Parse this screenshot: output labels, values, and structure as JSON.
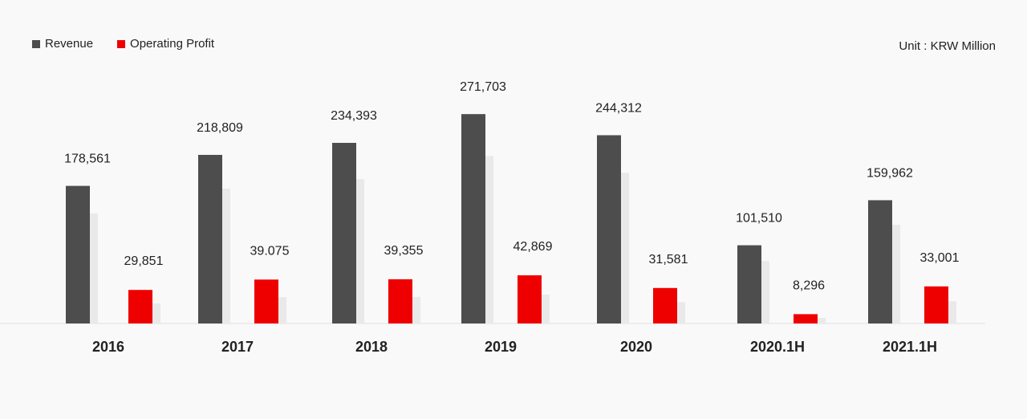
{
  "unit_label": "Unit : KRW Million",
  "legend": [
    {
      "label": "Revenue",
      "color": "#4d4d4d"
    },
    {
      "label": "Operating Profit",
      "color": "#ee0000"
    }
  ],
  "chart_data": {
    "type": "bar",
    "title": "",
    "xlabel": "",
    "ylabel": "",
    "categories": [
      "2016",
      "2017",
      "2018",
      "2019",
      "2020",
      "2020.1H",
      "2021.1H"
    ],
    "series": [
      {
        "name": "Revenue",
        "color": "#4d4d4d",
        "values": [
          178561,
          218809,
          234393,
          271703,
          244312,
          101510,
          159962
        ],
        "labels": [
          "178,561",
          "218,809",
          "234,393",
          "271,703",
          "244,312",
          "101,510",
          "159,962"
        ]
      },
      {
        "name": "Operating Profit",
        "color": "#ee0000",
        "values": [
          29851,
          39075,
          39355,
          42869,
          31581,
          8296,
          33001
        ],
        "labels": [
          "29,851",
          "39.075",
          "39,355",
          "42,869",
          "31,581",
          "8,296",
          "33,001"
        ]
      }
    ],
    "grid": false,
    "legend_position": "top-left"
  }
}
